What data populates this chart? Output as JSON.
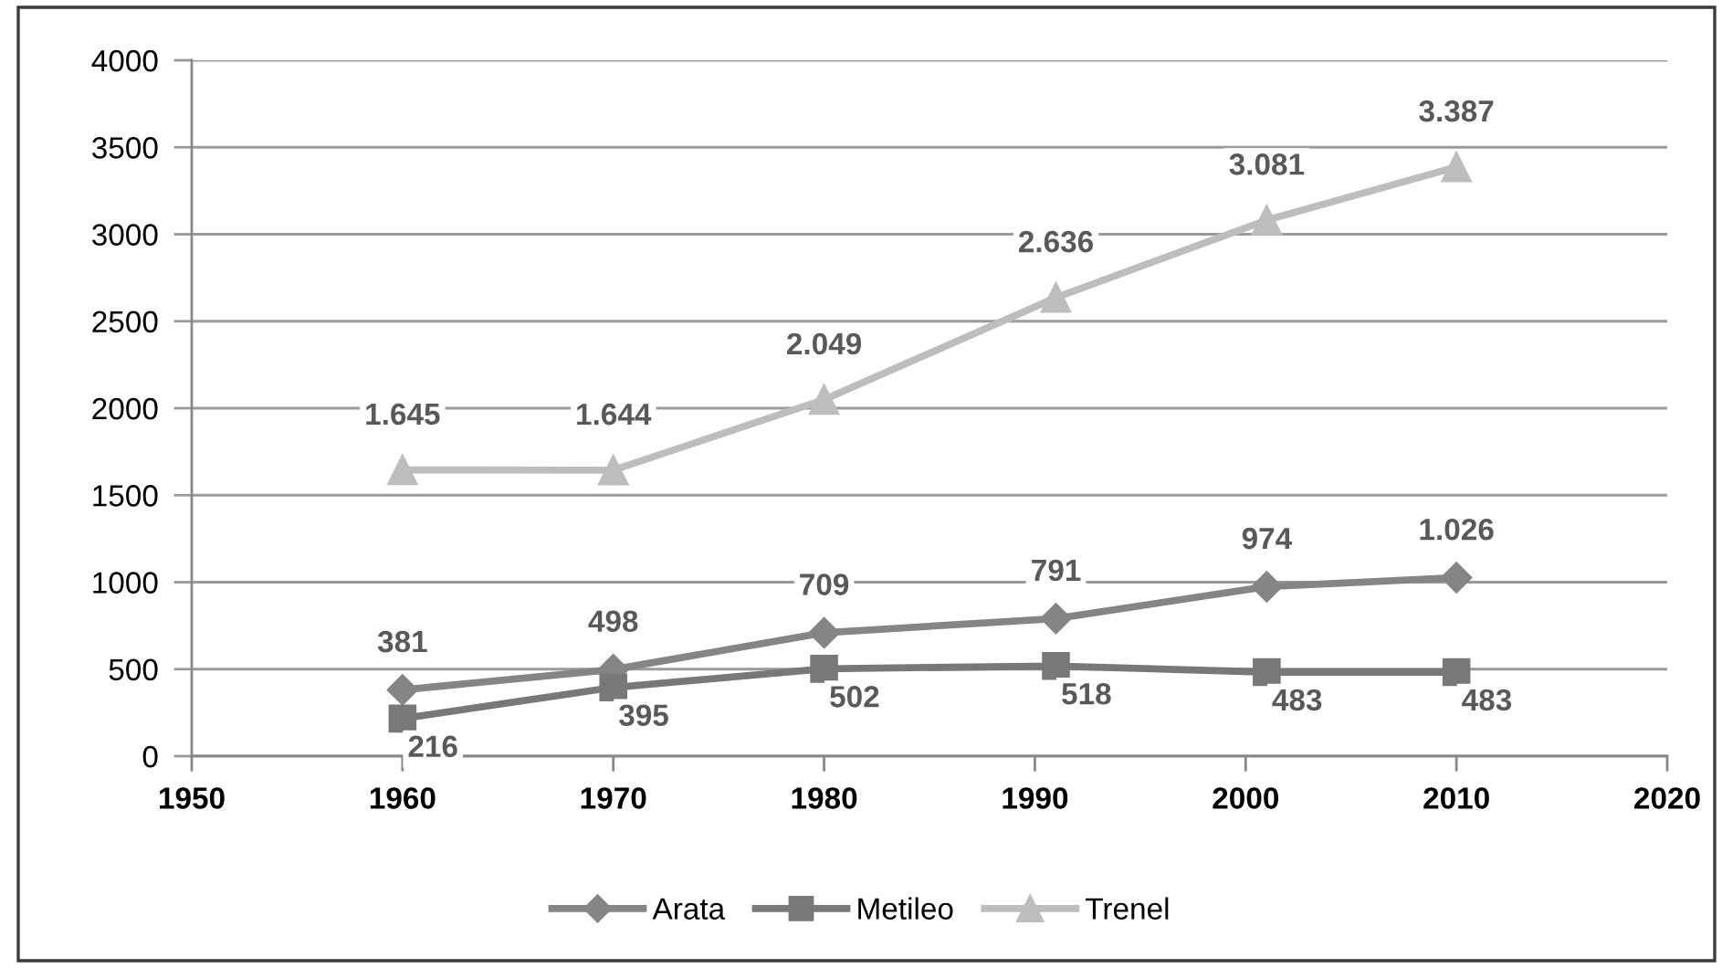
{
  "chart_data": {
    "type": "line",
    "x": [
      1960,
      1970,
      1980,
      1991,
      2001,
      2010
    ],
    "xlim": [
      1950,
      2020
    ],
    "xticks": [
      1950,
      1960,
      1970,
      1980,
      1990,
      2000,
      2010,
      2020
    ],
    "ylim": [
      0,
      4000
    ],
    "yticks": [
      0,
      500,
      1000,
      1500,
      2000,
      2500,
      3000,
      3500,
      4000
    ],
    "grid": "y",
    "legend": "bottom",
    "line_style": "solid",
    "series": [
      {
        "name": "Arata",
        "color": "#858585",
        "marker": "diamond",
        "values": [
          381,
          498,
          709,
          791,
          974,
          1026
        ],
        "value_labels": [
          "381",
          "498",
          "709",
          "791",
          "974",
          "1.026"
        ]
      },
      {
        "name": "Metileo",
        "color": "#787878",
        "marker": "square",
        "values": [
          216,
          395,
          502,
          518,
          483,
          483
        ],
        "value_labels": [
          "216",
          "395",
          "502",
          "518",
          "483",
          "483"
        ]
      },
      {
        "name": "Trenel",
        "color": "#bdbdbd",
        "marker": "triangle",
        "values": [
          1645,
          1644,
          2049,
          2636,
          3081,
          3387
        ],
        "value_labels": [
          "1.645",
          "1.644",
          "2.049",
          "2.636",
          "3.081",
          "3.387"
        ]
      }
    ]
  }
}
